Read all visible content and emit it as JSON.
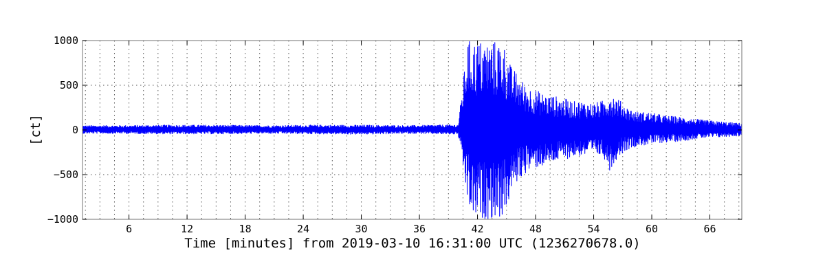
{
  "chart_data": {
    "type": "line",
    "xlabel": "Time [minutes] from 2019-03-10 16:31:00 UTC (1236270678.0)",
    "ylabel": "[ct]",
    "xlim": [
      1.2,
      69.3
    ],
    "ylim": [
      -1000,
      1000
    ],
    "x_ticks": [
      6,
      12,
      18,
      24,
      30,
      36,
      42,
      48,
      54,
      60,
      66
    ],
    "x_tick_labels": [
      "6",
      "12",
      "18",
      "24",
      "30",
      "36",
      "42",
      "48",
      "54",
      "60",
      "66"
    ],
    "y_ticks": [
      -1000,
      -500,
      0,
      500,
      1000
    ],
    "y_tick_labels": [
      "−1000",
      "−500",
      "0",
      "500",
      "1000"
    ],
    "grid": true,
    "series": [
      {
        "color": "#0000ff",
        "x": [
          1.2,
          5,
          10,
          15,
          20,
          25,
          30,
          35,
          40,
          41.0,
          41.5,
          42.0,
          42.5,
          43.0,
          43.5,
          44.0,
          44.5,
          45.0,
          45.5,
          46.0,
          47.0,
          48.0,
          49.0,
          50.0,
          51.0,
          52.0,
          53.0,
          54.0,
          55.0,
          55.7,
          56.5,
          57.5,
          58.5,
          59.5,
          60.5,
          61.5,
          62.5,
          63.5,
          64.5,
          65.5,
          66.5,
          67.5,
          68.5,
          69.3
        ],
        "envelope_upper": [
          50,
          50,
          55,
          55,
          50,
          55,
          55,
          50,
          60,
          1000,
          1000,
          1000,
          1000,
          1000,
          1000,
          1000,
          1000,
          900,
          700,
          650,
          500,
          450,
          400,
          380,
          350,
          320,
          320,
          300,
          330,
          430,
          350,
          250,
          200,
          200,
          180,
          160,
          150,
          140,
          120,
          110,
          100,
          90,
          80,
          75
        ],
        "envelope_lower": [
          -40,
          -40,
          -45,
          -45,
          -40,
          -45,
          -50,
          -40,
          -50,
          -850,
          -1000,
          -1000,
          -1000,
          -1000,
          -1000,
          -1000,
          -980,
          -900,
          -700,
          -600,
          -480,
          -430,
          -400,
          -360,
          -330,
          -300,
          -290,
          -280,
          -300,
          -460,
          -300,
          -220,
          -180,
          -170,
          -150,
          -140,
          -130,
          -120,
          -100,
          -90,
          -85,
          -80,
          -70,
          -65
        ]
      }
    ]
  }
}
